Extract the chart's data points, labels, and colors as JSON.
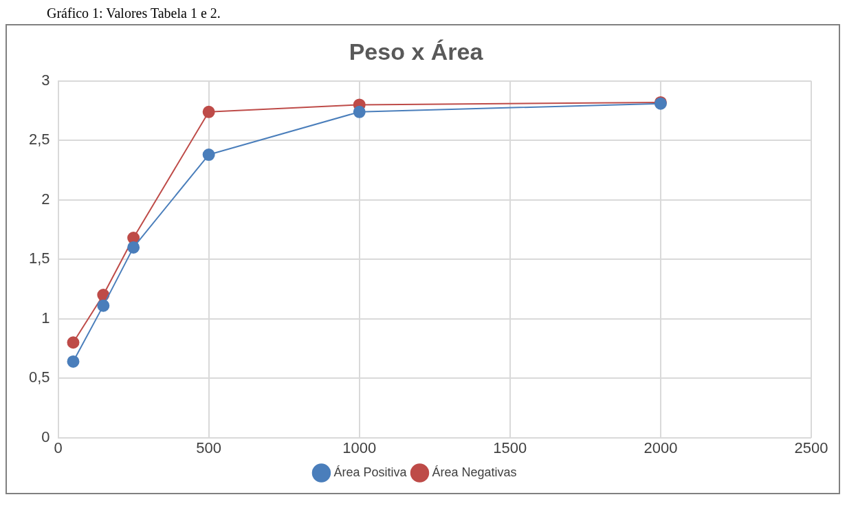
{
  "chart_data": {
    "type": "line",
    "title": "Peso x Área",
    "annotations": [
      "Gráfico 1: Valores Tabela 1 e 2."
    ],
    "x": [
      50,
      150,
      250,
      500,
      1000,
      2000
    ],
    "series": [
      {
        "name": "Área Positiva",
        "color": "#4a7ebb",
        "values": [
          0.64,
          1.11,
          1.6,
          2.38,
          2.74,
          2.81
        ]
      },
      {
        "name": "Área Negativas",
        "color": "#be4b48",
        "values": [
          0.8,
          1.2,
          1.68,
          2.74,
          2.8,
          2.82
        ]
      }
    ],
    "xlim": [
      0,
      2500
    ],
    "xticks": [
      0,
      500,
      1000,
      1500,
      2000,
      2500
    ],
    "ylim": [
      0,
      3
    ],
    "yticks": [
      0,
      {
        "value": 0.5,
        "label": "0,5"
      },
      1,
      {
        "value": 1.5,
        "label": "1,5"
      },
      2,
      {
        "value": 2.5,
        "label": "2,5"
      },
      3
    ],
    "grid": true,
    "legend": "bottom",
    "marker": "circle",
    "line_style": "solid"
  }
}
